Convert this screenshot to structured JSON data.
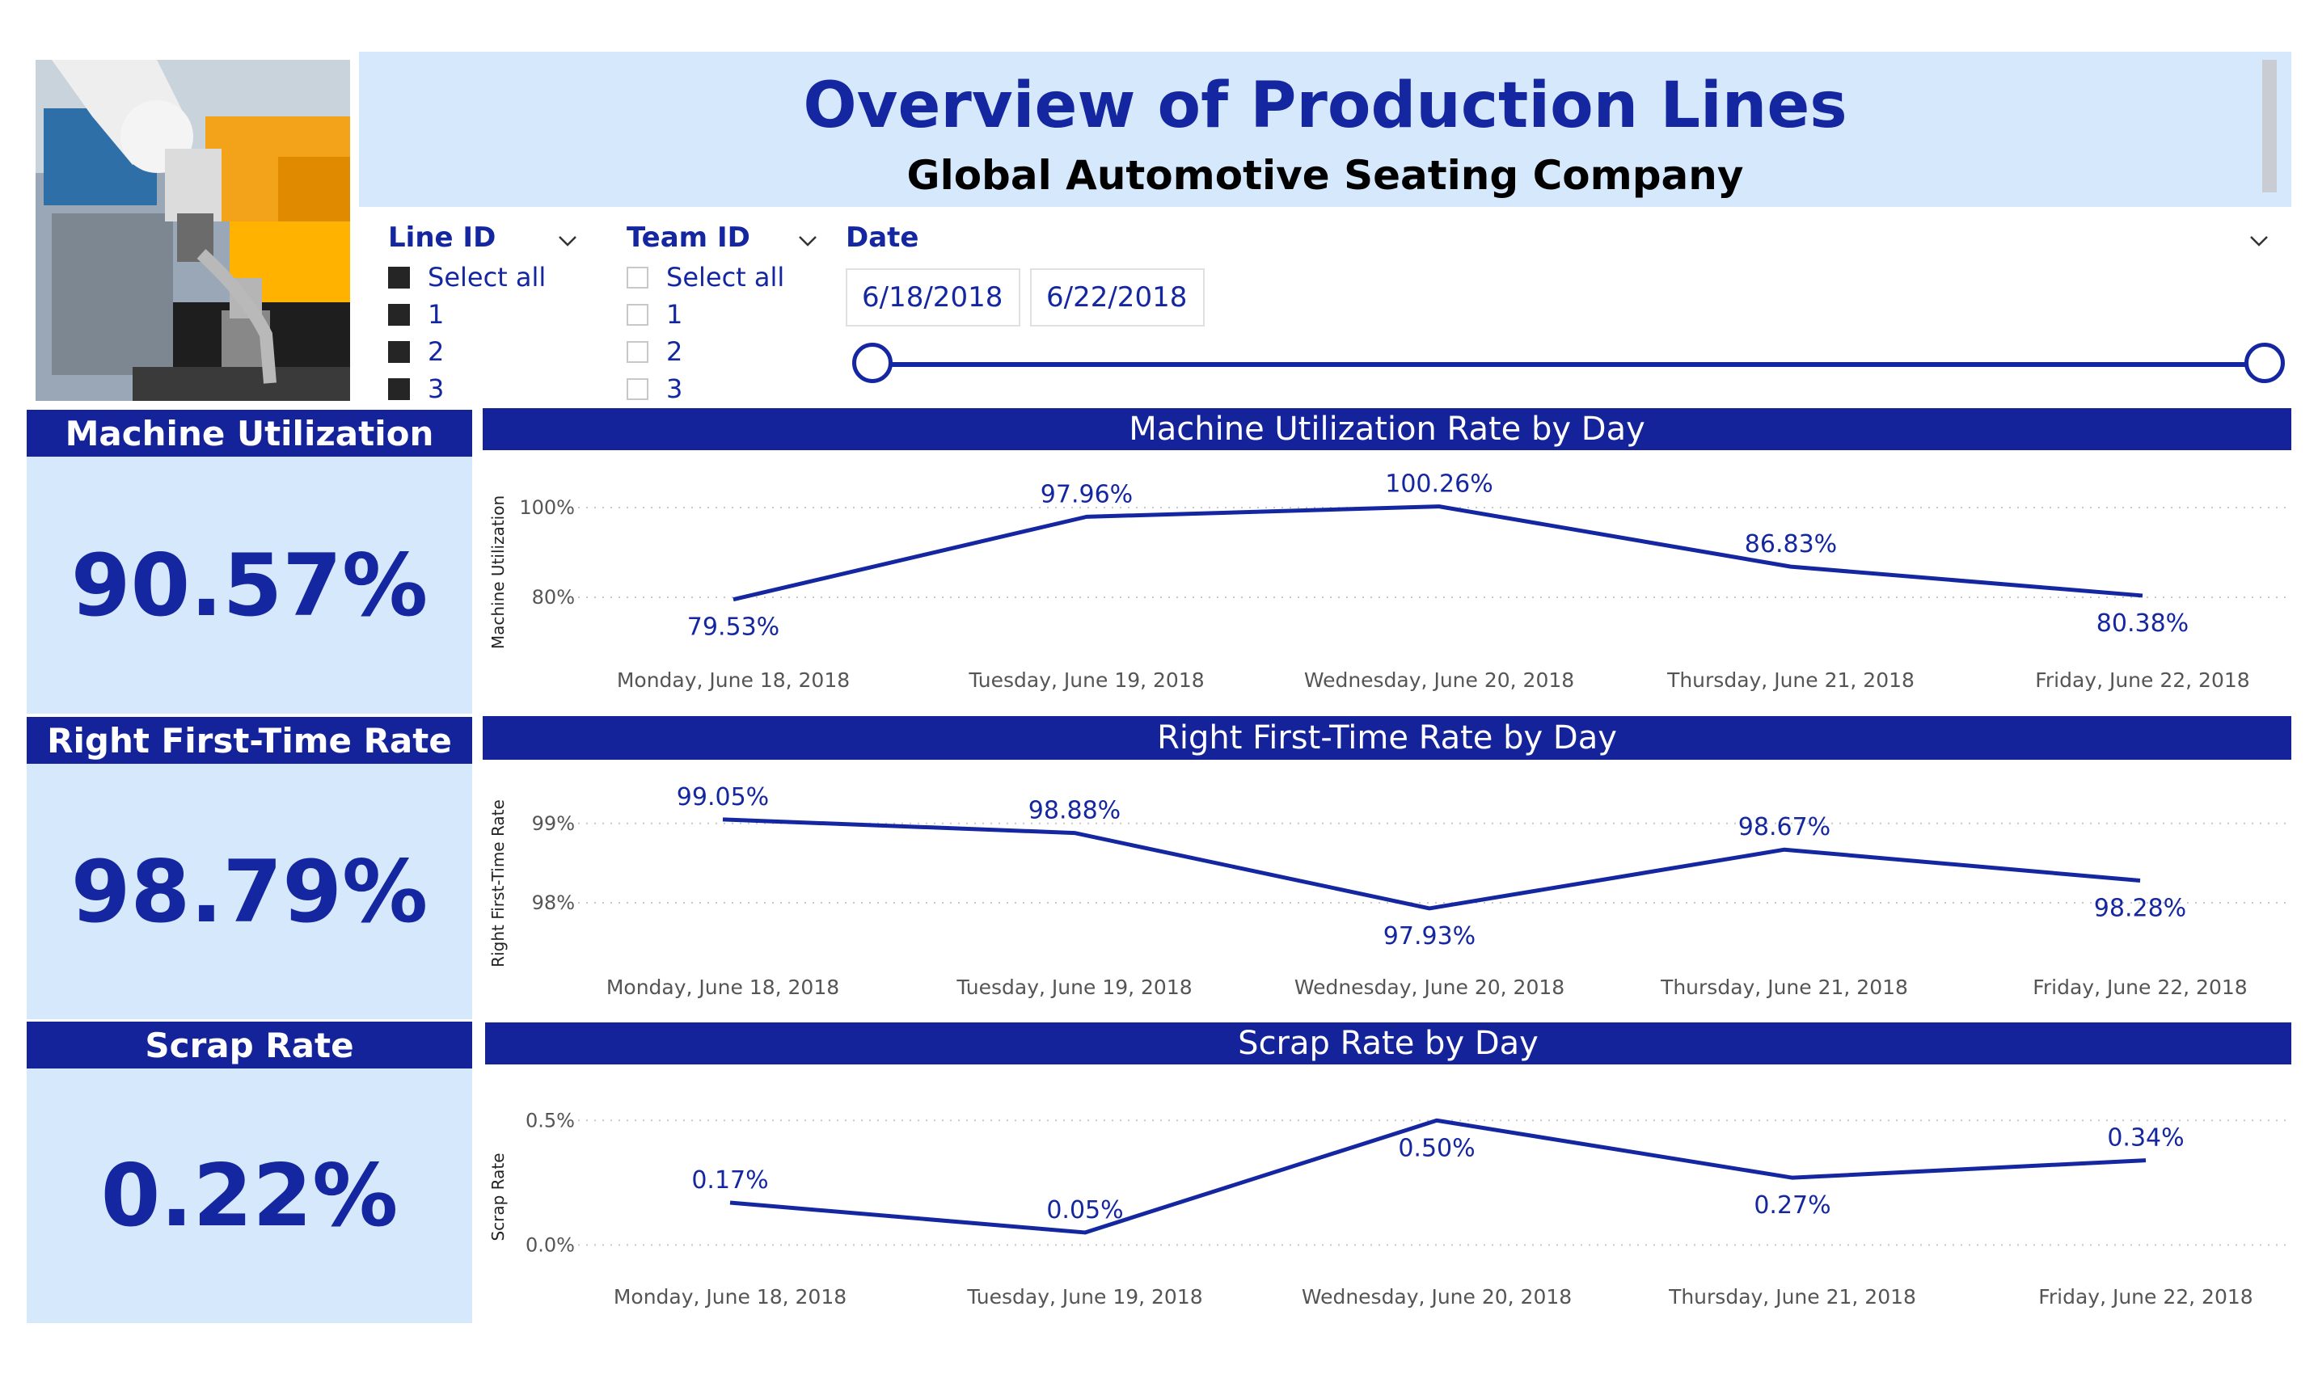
{
  "header": {
    "title": "Overview of Production Lines",
    "subtitle": "Global Automotive Seating Company"
  },
  "slicers": {
    "line_id": {
      "title": "Line ID",
      "options": [
        {
          "label": "Select all",
          "checked": true
        },
        {
          "label": "1",
          "checked": true
        },
        {
          "label": "2",
          "checked": true
        },
        {
          "label": "3",
          "checked": true
        }
      ]
    },
    "team_id": {
      "title": "Team ID",
      "options": [
        {
          "label": "Select all",
          "checked": false
        },
        {
          "label": "1",
          "checked": false
        },
        {
          "label": "2",
          "checked": false
        },
        {
          "label": "3",
          "checked": false
        }
      ]
    },
    "date": {
      "title": "Date",
      "start": "6/18/2018",
      "end": "6/22/2018",
      "range_start_fraction": 0,
      "range_end_fraction": 1
    }
  },
  "kpis": {
    "machine_utilization": {
      "label": "Machine Utilization",
      "value": "90.57%"
    },
    "right_first_time": {
      "label": "Right First-Time Rate",
      "value": "98.79%"
    },
    "scrap_rate": {
      "label": "Scrap Rate",
      "value": "0.22%"
    }
  },
  "colors": {
    "accent": "#15239a",
    "panel": "#d6e8fb",
    "line": "#1427a0"
  },
  "chart_data": [
    {
      "type": "line",
      "title": "Machine Utilization Rate by Day",
      "ylabel": "Machine Utilization",
      "xlabel": "",
      "categories": [
        "Monday, June 18, 2018",
        "Tuesday, June 19, 2018",
        "Wednesday, June 20, 2018",
        "Thursday, June 21, 2018",
        "Friday, June 22, 2018"
      ],
      "values": [
        79.53,
        97.96,
        100.26,
        86.83,
        80.38
      ],
      "data_labels": [
        "79.53%",
        "97.96%",
        "100.26%",
        "86.83%",
        "80.38%"
      ],
      "yticks": [
        {
          "v": 80,
          "label": "80%"
        },
        {
          "v": 100,
          "label": "100%"
        }
      ],
      "ylim": [
        71,
        111
      ],
      "grid": true
    },
    {
      "type": "line",
      "title": "Right First-Time Rate by Day",
      "ylabel": "Right First-Time Rate",
      "xlabel": "",
      "categories": [
        "Monday, June 18, 2018",
        "Tuesday, June 19, 2018",
        "Wednesday, June 20, 2018",
        "Thursday, June 21, 2018",
        "Friday, June 22, 2018"
      ],
      "values": [
        99.05,
        98.88,
        97.93,
        98.67,
        98.28
      ],
      "data_labels": [
        "99.05%",
        "98.88%",
        "97.93%",
        "98.67%",
        "98.28%"
      ],
      "yticks": [
        {
          "v": 98,
          "label": "98%"
        },
        {
          "v": 99,
          "label": "99%"
        }
      ],
      "ylim": [
        97.4,
        99.7
      ],
      "grid": true
    },
    {
      "type": "line",
      "title": "Scrap Rate by Day",
      "ylabel": "Scrap Rate",
      "xlabel": "",
      "categories": [
        "Monday, June 18, 2018",
        "Tuesday, June 19, 2018",
        "Wednesday, June 20, 2018",
        "Thursday, June 21, 2018",
        "Friday, June 22, 2018"
      ],
      "values": [
        0.17,
        0.05,
        0.5,
        0.27,
        0.34
      ],
      "data_labels": [
        "0.17%",
        "0.05%",
        "0.50%",
        "0.27%",
        "0.34%"
      ],
      "yticks": [
        {
          "v": 0,
          "label": "0.0%"
        },
        {
          "v": 0.5,
          "label": "0.5%"
        }
      ],
      "ylim": [
        -0.08,
        0.66
      ],
      "grid": true
    }
  ]
}
